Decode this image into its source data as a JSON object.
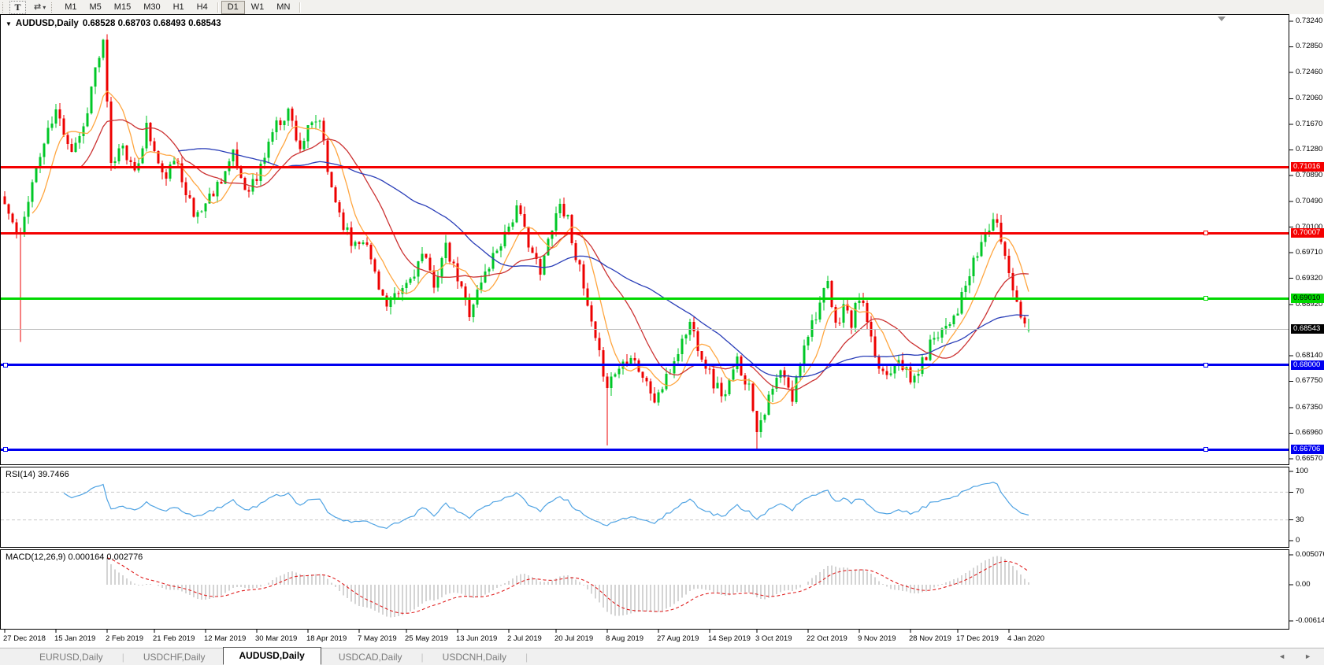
{
  "toolbar": {
    "text_tool": "T",
    "timeframes": [
      "M1",
      "M5",
      "M15",
      "M30",
      "H1",
      "H4",
      "D1",
      "W1",
      "MN"
    ],
    "active_timeframe": "D1"
  },
  "chart": {
    "symbol_title": "AUDUSD,Daily",
    "ohlc_readout": "0.68528 0.68703 0.68493 0.68543"
  },
  "tabs": {
    "items": [
      "EURUSD,Daily",
      "USDCHF,Daily",
      "AUDUSD,Daily",
      "USDCAD,Daily",
      "USDCNH,Daily"
    ],
    "active": "AUDUSD,Daily",
    "scroll_left": "◄",
    "scroll_right": "►"
  },
  "chart_data": {
    "type": "candlestick",
    "symbol": "AUDUSD",
    "timeframe": "Daily",
    "last_bar": {
      "open": 0.68528,
      "high": 0.68703,
      "low": 0.68493,
      "close": 0.68543
    },
    "visible_price_range": [
      0.6657,
      0.7324
    ],
    "bars": 261,
    "seed": 11,
    "noise": 0.0022,
    "candle_up_color": "#00C727",
    "candle_down_color": "#ED0000",
    "close_anchors": [
      [
        0,
        0.7045
      ],
      [
        3,
        0.7
      ],
      [
        4,
        0.6992
      ],
      [
        6,
        0.7058
      ],
      [
        10,
        0.7138
      ],
      [
        13,
        0.7186
      ],
      [
        17,
        0.713
      ],
      [
        20,
        0.7162
      ],
      [
        23,
        0.7252
      ],
      [
        25,
        0.7288
      ],
      [
        27,
        0.7102
      ],
      [
        30,
        0.714
      ],
      [
        33,
        0.7086
      ],
      [
        36,
        0.7164
      ],
      [
        40,
        0.7086
      ],
      [
        44,
        0.711
      ],
      [
        48,
        0.7026
      ],
      [
        51,
        0.7046
      ],
      [
        55,
        0.7086
      ],
      [
        58,
        0.7118
      ],
      [
        61,
        0.707
      ],
      [
        64,
        0.7082
      ],
      [
        68,
        0.7158
      ],
      [
        72,
        0.7188
      ],
      [
        75,
        0.7132
      ],
      [
        77,
        0.7156
      ],
      [
        80,
        0.7174
      ],
      [
        82,
        0.7092
      ],
      [
        85,
        0.7032
      ],
      [
        88,
        0.6986
      ],
      [
        91,
        0.6996
      ],
      [
        94,
        0.6942
      ],
      [
        97,
        0.6886
      ],
      [
        100,
        0.6906
      ],
      [
        103,
        0.6932
      ],
      [
        106,
        0.6966
      ],
      [
        109,
        0.6926
      ],
      [
        112,
        0.6976
      ],
      [
        115,
        0.693
      ],
      [
        118,
        0.6882
      ],
      [
        121,
        0.6926
      ],
      [
        124,
        0.6966
      ],
      [
        127,
        0.7002
      ],
      [
        130,
        0.7036
      ],
      [
        133,
        0.699
      ],
      [
        136,
        0.6936
      ],
      [
        139,
        0.7016
      ],
      [
        141,
        0.7046
      ],
      [
        143,
        0.7022
      ],
      [
        146,
        0.6942
      ],
      [
        148,
        0.6886
      ],
      [
        150,
        0.6832
      ],
      [
        153,
        0.6772
      ],
      [
        156,
        0.6796
      ],
      [
        159,
        0.682
      ],
      [
        162,
        0.6782
      ],
      [
        165,
        0.6746
      ],
      [
        168,
        0.6776
      ],
      [
        171,
        0.6822
      ],
      [
        174,
        0.6864
      ],
      [
        177,
        0.6816
      ],
      [
        180,
        0.6772
      ],
      [
        183,
        0.6752
      ],
      [
        186,
        0.6806
      ],
      [
        189,
        0.6766
      ],
      [
        191,
        0.6706
      ],
      [
        194,
        0.6746
      ],
      [
        197,
        0.679
      ],
      [
        200,
        0.6746
      ],
      [
        203,
        0.6836
      ],
      [
        206,
        0.688
      ],
      [
        209,
        0.692
      ],
      [
        211,
        0.6856
      ],
      [
        213,
        0.6892
      ],
      [
        215,
        0.6862
      ],
      [
        217,
        0.6906
      ],
      [
        219,
        0.6866
      ],
      [
        221,
        0.6802
      ],
      [
        224,
        0.6786
      ],
      [
        227,
        0.6816
      ],
      [
        230,
        0.6772
      ],
      [
        233,
        0.6802
      ],
      [
        236,
        0.6846
      ],
      [
        239,
        0.6862
      ],
      [
        242,
        0.6886
      ],
      [
        245,
        0.6936
      ],
      [
        248,
        0.6986
      ],
      [
        251,
        0.7022
      ],
      [
        253,
        0.6992
      ],
      [
        255,
        0.6942
      ],
      [
        257,
        0.6902
      ],
      [
        258,
        0.6872
      ],
      [
        260,
        0.68543
      ]
    ],
    "wick_overrides": [
      {
        "bar": 4,
        "low": 0.6835
      },
      {
        "bar": 25,
        "high": 0.7297
      },
      {
        "bar": 153,
        "low": 0.6677
      },
      {
        "bar": 191,
        "low": 0.667
      },
      {
        "bar": 251,
        "high": 0.7032
      }
    ],
    "moving_averages": [
      {
        "period": 8,
        "color": "#FFA640",
        "name": "ma-fast-orange"
      },
      {
        "period": 20,
        "color": "#CC3333",
        "name": "ma-medium-red"
      },
      {
        "period": 45,
        "color": "#2A3EB8",
        "name": "ma-slow-blue"
      }
    ],
    "price_ticks": [
      "0.73240",
      "0.72850",
      "0.72460",
      "0.72060",
      "0.71670",
      "0.71280",
      "0.70890",
      "0.70490",
      "0.70100",
      "0.69710",
      "0.69320",
      "0.68920",
      "0.68140",
      "0.67750",
      "0.67350",
      "0.66960",
      "0.66570"
    ],
    "levels": [
      {
        "label": "0.71016",
        "value": 0.71016,
        "color": "#F40000",
        "text_color": "#ffffff",
        "thickness": 3,
        "handles": []
      },
      {
        "label": "0.70007",
        "value": 0.70007,
        "color": "#F40000",
        "text_color": "#ffffff",
        "thickness": 3,
        "handles": [
          "right"
        ]
      },
      {
        "label": "0.69010",
        "value": 0.6901,
        "color": "#00D800",
        "text_color": "#000000",
        "thickness": 3,
        "handles": [
          "right"
        ]
      },
      {
        "label": "0.68543",
        "value": 0.68543,
        "color": "#000000",
        "text_color": "#ffffff",
        "thickness": 1,
        "line_color": "#bbbbbb",
        "current": true,
        "handles": []
      },
      {
        "label": "0.68000",
        "value": 0.68,
        "color": "#0000F0",
        "text_color": "#ffffff",
        "thickness": 3,
        "handles": [
          "left",
          "right"
        ]
      },
      {
        "label": "0.66706",
        "value": 0.66706,
        "color": "#0000F0",
        "text_color": "#ffffff",
        "thickness": 3,
        "handles": [
          "left",
          "right"
        ]
      }
    ],
    "date_ticks": [
      {
        "label": "27 Dec 2018",
        "bar": 0
      },
      {
        "label": "15 Jan 2019",
        "bar": 13
      },
      {
        "label": "2 Feb 2019",
        "bar": 26
      },
      {
        "label": "21 Feb 2019",
        "bar": 38
      },
      {
        "label": "12 Mar 2019",
        "bar": 51
      },
      {
        "label": "30 Mar 2019",
        "bar": 64
      },
      {
        "label": "18 Apr 2019",
        "bar": 77
      },
      {
        "label": "7 May 2019",
        "bar": 90
      },
      {
        "label": "25 May 2019",
        "bar": 102
      },
      {
        "label": "13 Jun 2019",
        "bar": 115
      },
      {
        "label": "2 Jul 2019",
        "bar": 128
      },
      {
        "label": "20 Jul 2019",
        "bar": 140
      },
      {
        "label": "8 Aug 2019",
        "bar": 153
      },
      {
        "label": "27 Aug 2019",
        "bar": 166
      },
      {
        "label": "14 Sep 2019",
        "bar": 179
      },
      {
        "label": "3 Oct 2019",
        "bar": 191
      },
      {
        "label": "22 Oct 2019",
        "bar": 204
      },
      {
        "label": "9 Nov 2019",
        "bar": 217
      },
      {
        "label": "28 Nov 2019",
        "bar": 230
      },
      {
        "label": "17 Dec 2019",
        "bar": 242
      },
      {
        "label": "4 Jan 2020",
        "bar": 255
      }
    ],
    "rsi_panel": {
      "name": "RSI(14)",
      "value": "39.7466",
      "period": 14,
      "line_color": "#4FA3E3",
      "ticks": [
        {
          "label": "100",
          "v": 100
        },
        {
          "label": "70",
          "v": 70
        },
        {
          "label": "30",
          "v": 30
        },
        {
          "label": "0",
          "v": 0
        }
      ],
      "guides": [
        70,
        30
      ]
    },
    "macd_panel": {
      "name": "MACD(12,26,9)",
      "values": "0.000164 0.002776",
      "fast": 12,
      "slow": 26,
      "signal": 9,
      "histogram_color": "#A9A9A9",
      "signal_color": "#E02020",
      "ticks": [
        {
          "label": "0.005076",
          "v": 0.005076
        },
        {
          "label": "0.00",
          "v": 0
        },
        {
          "label": "-0.006148",
          "v": -0.006148
        }
      ]
    }
  }
}
